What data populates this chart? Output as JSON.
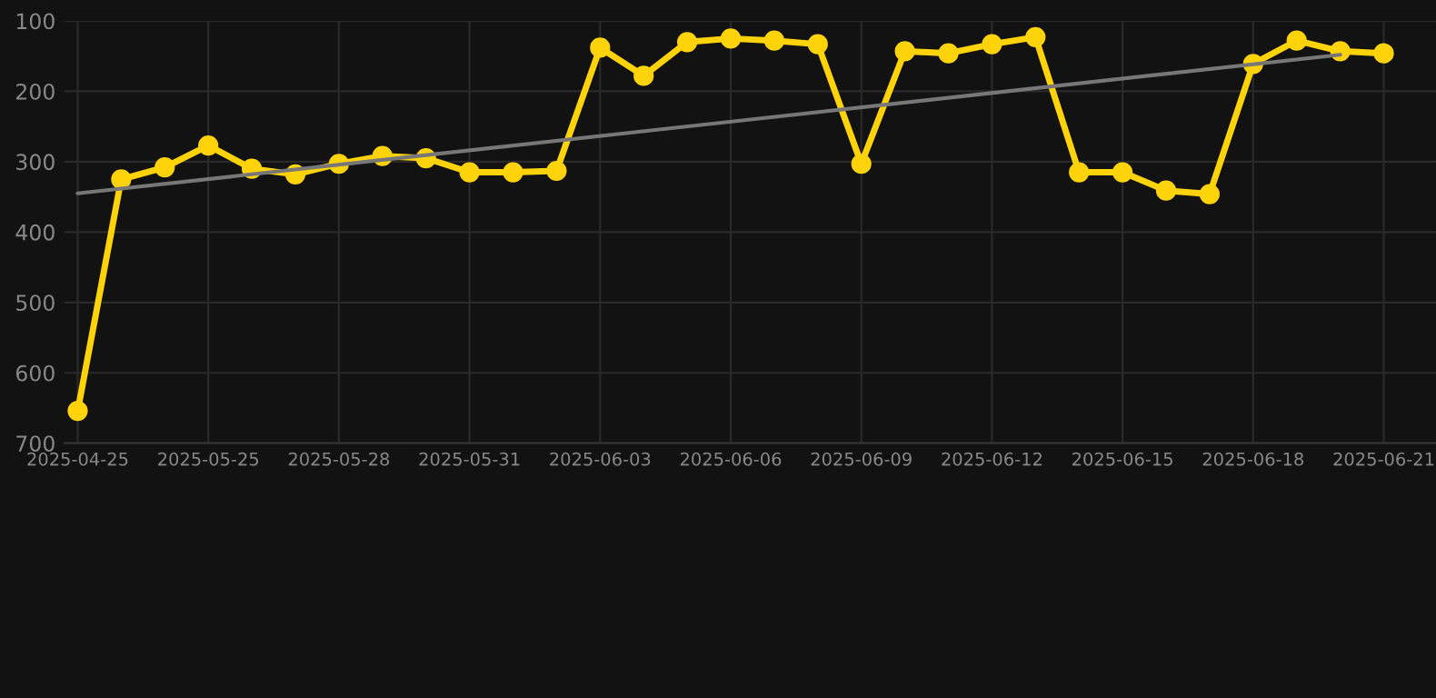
{
  "chart_data": {
    "type": "line",
    "categories": [
      "2025-04-25",
      null,
      null,
      "2025-05-25",
      null,
      null,
      "2025-05-28",
      null,
      null,
      "2025-05-31",
      null,
      null,
      "2025-06-03",
      null,
      null,
      "2025-06-06",
      null,
      null,
      "2025-06-09",
      null,
      null,
      "2025-06-12",
      null,
      null,
      "2025-06-15",
      null,
      null,
      "2025-06-18",
      null,
      null,
      "2025-06-21"
    ],
    "series": [
      {
        "color": "#ffd30a",
        "marker": "circle",
        "values": [
          654,
          325,
          308,
          277,
          310,
          318,
          303,
          292,
          295,
          315,
          315,
          313,
          138,
          178,
          130,
          125,
          128,
          133,
          303,
          143,
          146,
          133,
          123,
          315,
          315,
          341,
          346,
          161,
          128,
          143,
          146
        ]
      },
      {
        "color": "#777777",
        "marker": "none",
        "values": [
          345,
          null,
          null,
          null,
          null,
          null,
          null,
          null,
          null,
          null,
          null,
          null,
          null,
          null,
          null,
          null,
          null,
          null,
          null,
          null,
          null,
          null,
          null,
          null,
          null,
          null,
          null,
          null,
          null,
          148,
          null
        ]
      }
    ],
    "ylim": [
      700,
      100
    ],
    "yticks": [
      100,
      200,
      300,
      400,
      500,
      600,
      700
    ],
    "grid": true,
    "line_style": "solid"
  }
}
